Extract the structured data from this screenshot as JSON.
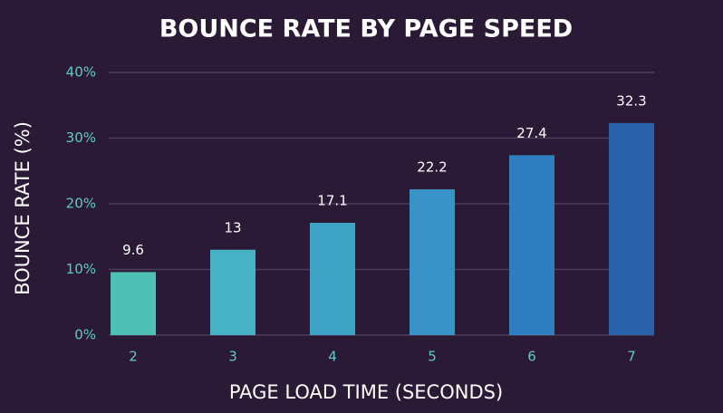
{
  "chart_data": {
    "type": "bar",
    "title": "BOUNCE RATE BY PAGE SPEED",
    "x_label": "PAGE LOAD TIME (SECONDS)",
    "y_label": "BOUNCE RATE (%)",
    "categories": [
      "2",
      "3",
      "4",
      "5",
      "6",
      "7"
    ],
    "values": [
      9.6,
      13,
      17.1,
      22.2,
      27.4,
      32.3
    ],
    "colors": [
      "#4fc0b6",
      "#46b2c3",
      "#3fa3c6",
      "#3894c7",
      "#2f7fc0",
      "#2a61a8"
    ],
    "ylim": [
      0,
      40
    ],
    "yticks": [
      {
        "value": 0,
        "label": "0%"
      },
      {
        "value": 10,
        "label": "10%"
      },
      {
        "value": 20,
        "label": "20%"
      },
      {
        "value": 30,
        "label": "30%"
      },
      {
        "value": 40,
        "label": "40%"
      }
    ],
    "grid": true
  }
}
